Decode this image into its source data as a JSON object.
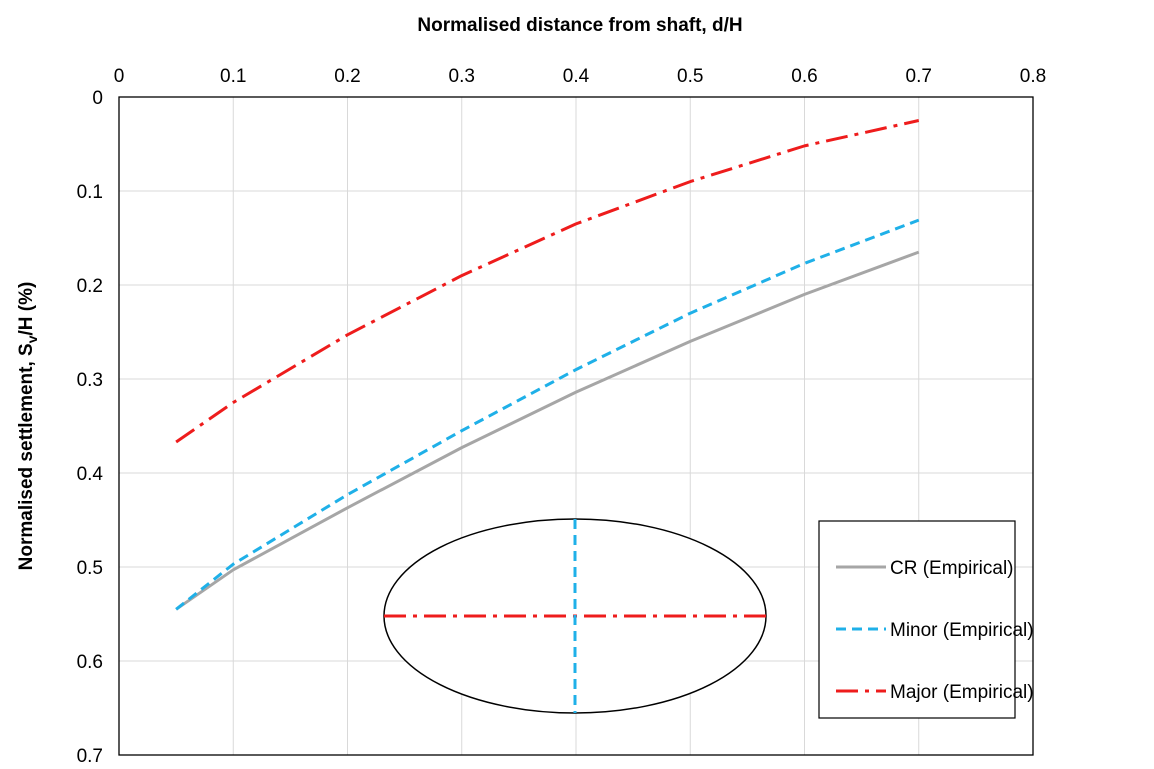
{
  "chart_data": {
    "type": "line",
    "xlabel": "Normalised distance from shaft, d/H",
    "ylabel_main": "Normalised settlement, S",
    "ylabel_sub": "v",
    "ylabel_tail": "/H (%)",
    "xlim": [
      0,
      0.8
    ],
    "ylim": [
      0,
      0.7
    ],
    "y_reversed": true,
    "x_axis_position": "top",
    "grid": true,
    "x_ticks": [
      "0",
      "0.1",
      "0.2",
      "0.3",
      "0.4",
      "0.5",
      "0.6",
      "0.7",
      "0.8"
    ],
    "y_ticks": [
      "0",
      "0.1",
      "0.2",
      "0.3",
      "0.4",
      "0.5",
      "0.6",
      "0.7"
    ],
    "legend_position": "bottom-right",
    "series": [
      {
        "name": "CR (Empirical)",
        "color": "#a6a6a6",
        "dash": "solid",
        "x": [
          0.05,
          0.1,
          0.2,
          0.3,
          0.4,
          0.5,
          0.6,
          0.7
        ],
        "y": [
          0.545,
          0.503,
          0.437,
          0.373,
          0.314,
          0.26,
          0.21,
          0.165
        ]
      },
      {
        "name": "Minor (Empirical)",
        "color": "#1fb0e8",
        "dash": "dash",
        "x": [
          0.05,
          0.1,
          0.2,
          0.3,
          0.4,
          0.5,
          0.6,
          0.7
        ],
        "y": [
          0.545,
          0.497,
          0.423,
          0.355,
          0.29,
          0.23,
          0.177,
          0.131
        ]
      },
      {
        "name": "Major (Empirical)",
        "color": "#ee1c1c",
        "dash": "dashdot",
        "x": [
          0.05,
          0.1,
          0.2,
          0.3,
          0.4,
          0.5,
          0.6,
          0.7
        ],
        "y": [
          0.367,
          0.325,
          0.253,
          0.19,
          0.135,
          0.09,
          0.052,
          0.025
        ]
      }
    ],
    "inset": {
      "shape": "ellipse",
      "major_axis_color": "#ee1c1c",
      "minor_axis_color": "#1fb0e8"
    }
  }
}
